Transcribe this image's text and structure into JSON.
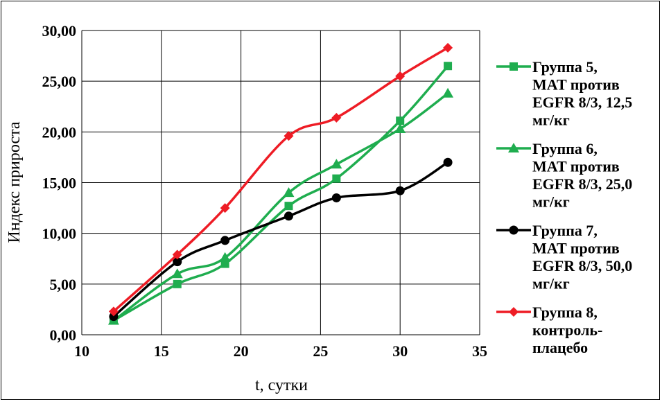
{
  "chart_data": {
    "type": "line",
    "title": "",
    "xlabel": "t, сутки",
    "ylabel": "Индекс прироста",
    "xlim": [
      10,
      35
    ],
    "ylim": [
      0,
      30
    ],
    "x_ticks": [
      "10",
      "15",
      "20",
      "25",
      "30",
      "35"
    ],
    "y_ticks": [
      "0,00",
      "5,00",
      "10,00",
      "15,00",
      "20,00",
      "25,00",
      "30,00"
    ],
    "grid": true,
    "legend_position": "right",
    "series": [
      {
        "name_lines": [
          "Группа 5,",
          "MAT против",
          "EGFR 8/3, 12,5",
          "мг/кг"
        ],
        "marker": "square",
        "color": "#1fad4f",
        "x": [
          12,
          16,
          19,
          23,
          26,
          30,
          33
        ],
        "y": [
          1.4,
          5.0,
          7.0,
          12.7,
          15.4,
          21.1,
          26.5
        ]
      },
      {
        "name_lines": [
          "Группа 6,",
          "MAT против",
          "EGFR 8/3, 25,0",
          "мг/кг"
        ],
        "marker": "triangle",
        "color": "#1fad4f",
        "x": [
          12,
          16,
          19,
          23,
          26,
          30,
          33
        ],
        "y": [
          1.4,
          6.0,
          7.6,
          14.0,
          16.8,
          20.3,
          23.8
        ]
      },
      {
        "name_lines": [
          "Группа 7,",
          "MAT против",
          "EGFR 8/3, 50,0",
          "мг/кг"
        ],
        "marker": "circle",
        "color": "#000000",
        "x": [
          12,
          16,
          19,
          23,
          26,
          30,
          33
        ],
        "y": [
          1.8,
          7.2,
          9.3,
          11.7,
          13.5,
          14.2,
          17.0
        ]
      },
      {
        "name_lines": [
          "Группа 8,",
          "контроль-",
          "плацебо"
        ],
        "marker": "diamond",
        "color": "#ee1c25",
        "x": [
          12,
          16,
          19,
          23,
          26,
          30,
          33
        ],
        "y": [
          2.3,
          7.9,
          12.5,
          19.6,
          21.4,
          25.5,
          28.3
        ]
      }
    ]
  }
}
